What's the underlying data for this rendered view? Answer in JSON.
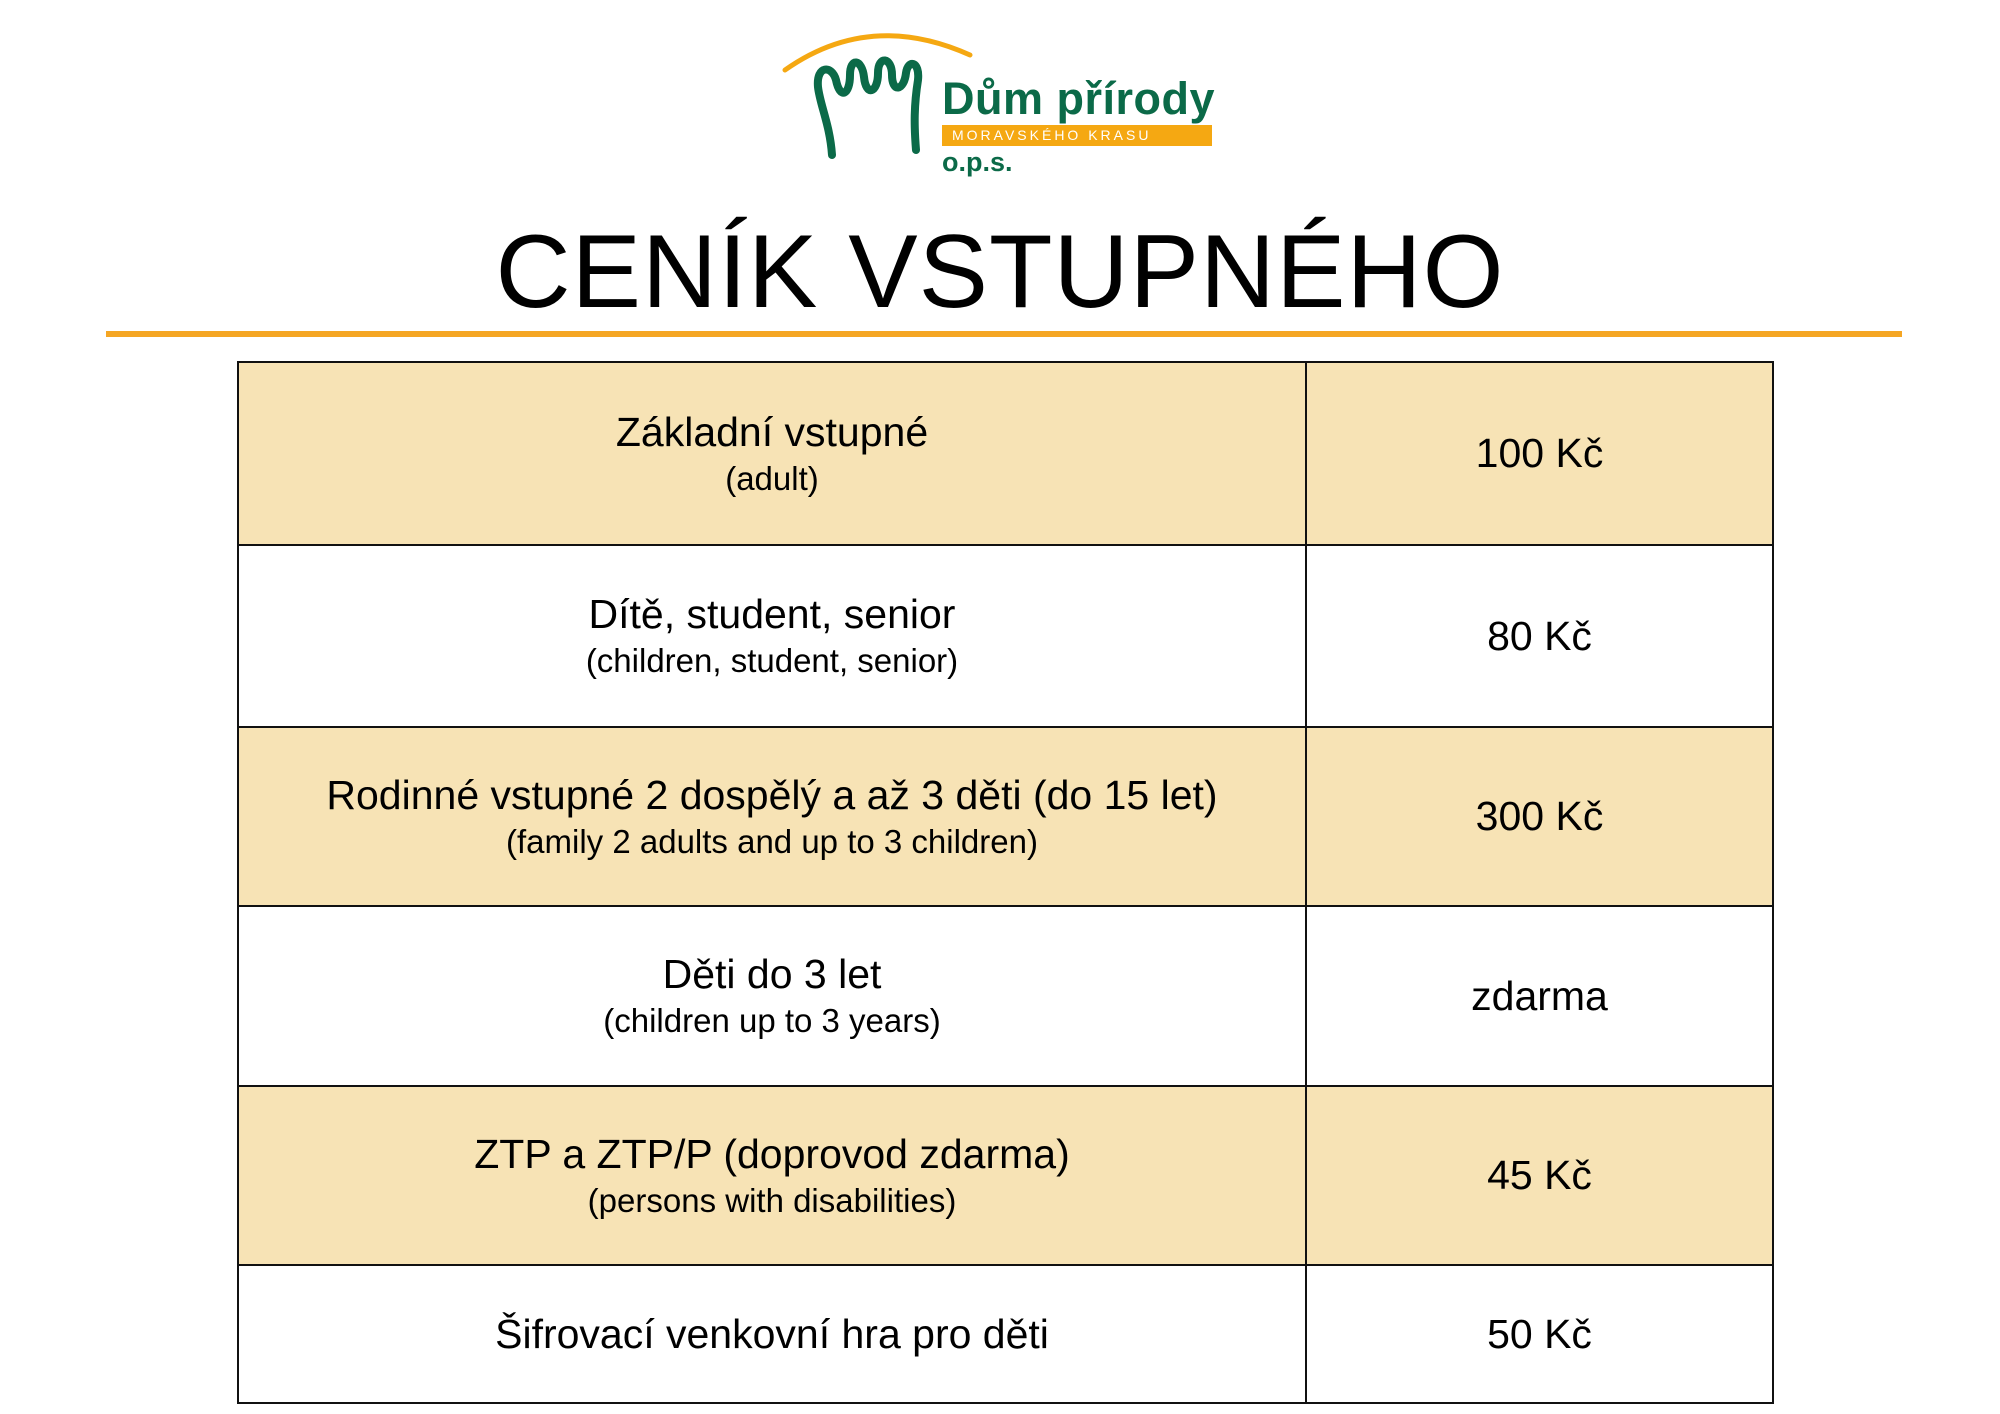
{
  "logo": {
    "name": "Dům přírody",
    "subtitle": "MORAVSKÉHO KRASU",
    "suffix": "o.p.s.",
    "colors": {
      "green": "#0b6a48",
      "orange": "#f5a812"
    }
  },
  "title": "CENÍK VSTUPNÉHO",
  "accent_color": "#f5a623",
  "row_shade_color": "#f7e3b5",
  "prices": [
    {
      "label": "Základní vstupné",
      "note": "(adult)",
      "price": "100 Kč",
      "shaded": true
    },
    {
      "label": "Dítě, student, senior",
      "note": "(children, student, senior)",
      "price": "80 Kč",
      "shaded": false
    },
    {
      "label": "Rodinné vstupné 2 dospělý a až 3 děti (do 15 let)",
      "note": "(family 2 adults and up to 3 children)",
      "price": "300 Kč",
      "shaded": true
    },
    {
      "label": "Děti do 3 let",
      "note": "(children up to 3 years)",
      "price": "zdarma",
      "shaded": false
    },
    {
      "label": "ZTP a ZTP/P (doprovod zdarma)",
      "note": "(persons with disabilities)",
      "price": "45 Kč",
      "shaded": true
    },
    {
      "label": "Šifrovací venkovní hra pro děti",
      "price": "50 Kč",
      "shaded": false
    }
  ]
}
